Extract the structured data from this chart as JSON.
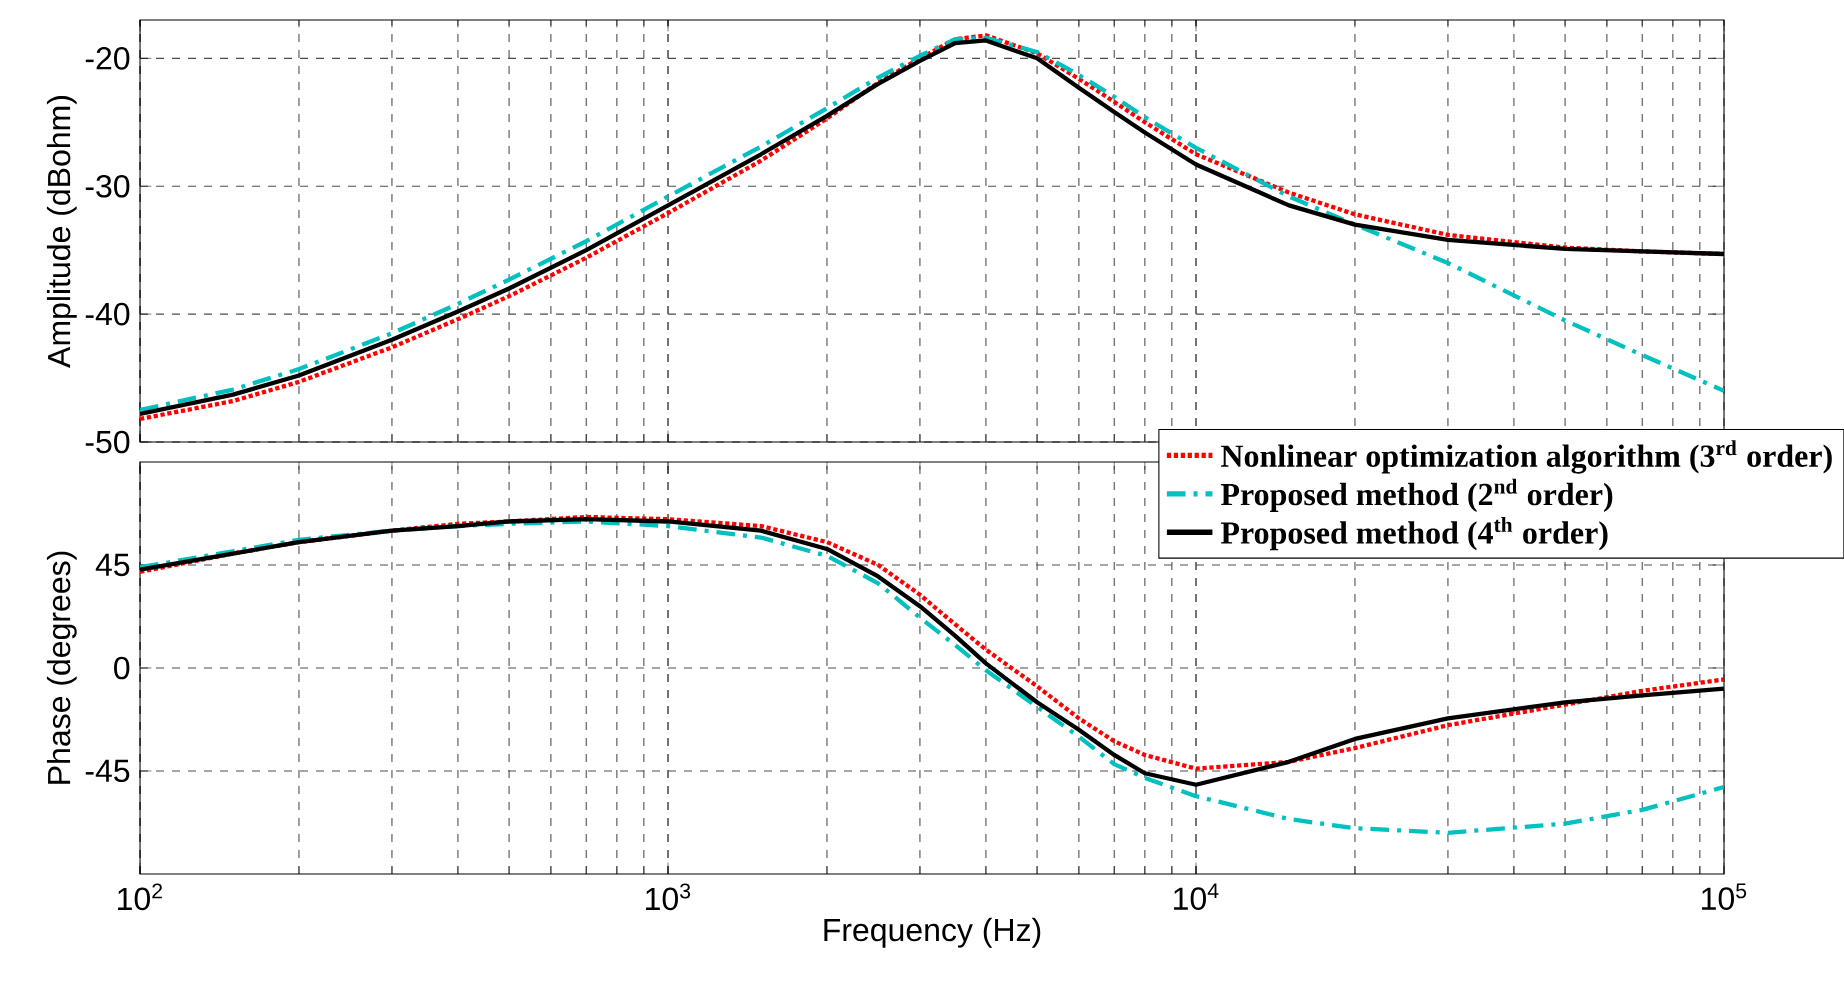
{
  "chart_data": [
    {
      "type": "line",
      "ylabel": "Amplitude (dBohm)",
      "log": "x",
      "grid": true,
      "tick_labels": "y",
      "marker": "none",
      "x": [
        100,
        150,
        200,
        300,
        400,
        500,
        700,
        1000,
        1500,
        2000,
        2500,
        3000,
        3500,
        4000,
        5000,
        6000,
        7000,
        8000,
        10000,
        15000,
        20000,
        30000,
        50000,
        70000,
        100000
      ],
      "xlim": [
        100,
        100000
      ],
      "xticks": [
        {
          "value": 100,
          "label": null
        },
        {
          "value": 1000,
          "label": null
        },
        {
          "value": 10000,
          "label": null
        },
        {
          "value": 100000,
          "label": null
        }
      ],
      "ylim": [
        -50,
        -17
      ],
      "yticks": [
        -50,
        -40,
        -30,
        -20
      ],
      "series": [
        {
          "color": "#ff0000",
          "line_style": "dotted",
          "values": [
            -48.2,
            -46.8,
            -45.3,
            -42.6,
            -40.4,
            -38.6,
            -35.6,
            -32.1,
            -28.0,
            -24.7,
            -21.9,
            -20.0,
            -18.5,
            -18.2,
            -19.6,
            -21.6,
            -23.4,
            -25.0,
            -27.5,
            -30.5,
            -32.2,
            -33.8,
            -34.8,
            -35.1,
            -35.3
          ]
        },
        {
          "color": "#00c0c0",
          "line_style": "dashdot",
          "values": [
            -47.5,
            -45.9,
            -44.3,
            -41.5,
            -39.2,
            -37.3,
            -34.3,
            -30.8,
            -26.9,
            -23.9,
            -21.5,
            -19.8,
            -18.5,
            -18.4,
            -19.5,
            -21.3,
            -23.0,
            -24.6,
            -27.0,
            -30.8,
            -33.0,
            -36.0,
            -40.5,
            -43.2,
            -46.0
          ]
        },
        {
          "color": "#000000",
          "line_style": "solid",
          "values": [
            -47.8,
            -46.3,
            -44.8,
            -42.0,
            -39.8,
            -38.0,
            -35.0,
            -31.5,
            -27.5,
            -24.5,
            -22.0,
            -20.2,
            -18.8,
            -18.6,
            -20.0,
            -22.3,
            -24.2,
            -25.8,
            -28.3,
            -31.5,
            -33.0,
            -34.2,
            -34.9,
            -35.1,
            -35.3
          ]
        }
      ]
    },
    {
      "type": "line",
      "xlabel": "Frequency (Hz)",
      "ylabel": "Phase (degrees)",
      "log": "x",
      "grid": true,
      "legend": "top right",
      "marker": "none",
      "x": [
        100,
        150,
        200,
        300,
        400,
        500,
        700,
        1000,
        1500,
        2000,
        2500,
        3000,
        3500,
        4000,
        5000,
        6000,
        7000,
        8000,
        10000,
        15000,
        20000,
        30000,
        50000,
        70000,
        100000
      ],
      "xlim": [
        100,
        100000
      ],
      "xticks": [
        {
          "value": 100,
          "label": "10$^{2}$"
        },
        {
          "value": 1000,
          "label": "10$^{3}$"
        },
        {
          "value": 10000,
          "label": "10$^{4}$"
        },
        {
          "value": 100000,
          "label": "10$^{5}$"
        }
      ],
      "ylim": [
        -90,
        90
      ],
      "yticks": [
        -45,
        0,
        45
      ],
      "series": [
        {
          "name": "Nonlinear optimization algorithm (3$^{rd}$ order)",
          "color": "#ff0000",
          "line_style": "dotted",
          "values": [
            42,
            50,
            55,
            60,
            63,
            64,
            66,
            65,
            62,
            55,
            45,
            32,
            19,
            8,
            -8,
            -22,
            -32,
            -38,
            -44,
            -41,
            -35,
            -25,
            -16,
            -10,
            -5
          ]
        },
        {
          "name": "Proposed method (2$^{nd}$ order)",
          "color": "#00c0c0",
          "line_style": "dashdot",
          "values": [
            44,
            51,
            56,
            60,
            62,
            63,
            64,
            62,
            57,
            49,
            37,
            22,
            10,
            -1,
            -17,
            -30,
            -42,
            -48,
            -56,
            -66,
            -70,
            -72,
            -68,
            -62,
            -52
          ]
        },
        {
          "name": "Proposed method (4$^{th}$ order)",
          "color": "#000000",
          "line_style": "solid",
          "values": [
            43,
            50,
            55,
            60,
            62,
            64,
            65,
            64,
            60,
            52,
            40,
            27,
            14,
            2,
            -15,
            -27,
            -38,
            -46,
            -51,
            -41,
            -31,
            -22,
            -15,
            -12,
            -9
          ]
        }
      ]
    }
  ]
}
